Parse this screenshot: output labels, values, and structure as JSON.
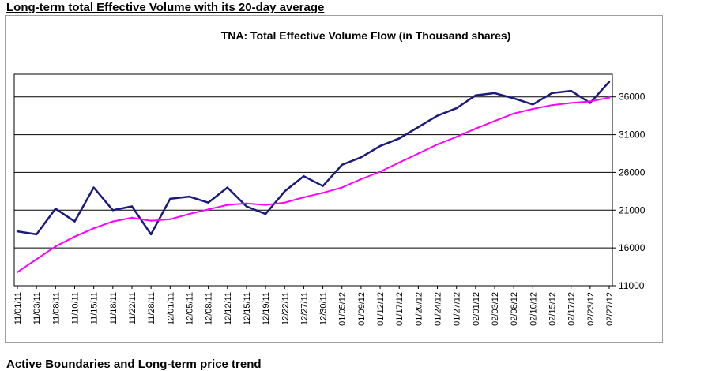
{
  "page": {
    "heading_top": "Long-term total Effective Volume with its 20-day average",
    "heading_bottom": "Active Boundaries and Long-term price trend"
  },
  "colors": {
    "series_volume": "#1a1a80",
    "series_average": "#ff00ff",
    "grid": "#000000"
  },
  "chart_data": {
    "type": "line",
    "title": "TNA: Total Effective Volume Flow (in Thousand shares)",
    "xlabel": "",
    "ylabel": "",
    "ylim": [
      11000,
      39000
    ],
    "yticks": [
      11000,
      16000,
      21000,
      26000,
      31000,
      36000
    ],
    "grid": "horizontal",
    "legend": "none",
    "x_tick_labels": [
      "11/01/11",
      "11/03/11",
      "11/08/11",
      "11/10/11",
      "11/15/11",
      "11/18/11",
      "11/22/11",
      "11/28/11",
      "12/01/11",
      "12/05/11",
      "12/08/11",
      "12/12/11",
      "12/15/11",
      "12/19/11",
      "12/22/11",
      "12/27/11",
      "12/30/11",
      "01/05/12",
      "01/09/12",
      "01/12/12",
      "01/17/12",
      "01/20/12",
      "01/24/12",
      "01/27/12",
      "02/01/12",
      "02/03/12",
      "02/08/12",
      "02/10/12",
      "02/15/12",
      "02/17/12",
      "02/23/12",
      "02/27/12"
    ],
    "series": [
      {
        "key": "volume",
        "x": [
          "11/01/11",
          "11/03/11",
          "11/08/11",
          "11/10/11",
          "11/15/11",
          "11/18/11",
          "11/22/11",
          "11/28/11",
          "12/01/11",
          "12/05/11",
          "12/08/11",
          "12/12/11",
          "12/15/11",
          "12/19/11",
          "12/22/11",
          "12/27/11",
          "12/30/11",
          "01/05/12",
          "01/09/12",
          "01/12/12",
          "01/17/12",
          "01/20/12",
          "01/24/12",
          "01/27/12",
          "02/01/12",
          "02/03/12",
          "02/08/12",
          "02/10/12",
          "02/15/12",
          "02/17/12",
          "02/23/12",
          "02/27/12"
        ],
        "values": [
          18200,
          17800,
          21200,
          19500,
          24000,
          21000,
          21500,
          17800,
          22500,
          22800,
          22000,
          24000,
          21500,
          20500,
          23500,
          25500,
          24200,
          27000,
          28000,
          29500,
          30500,
          32000,
          33500,
          34500,
          36200,
          36500,
          35800,
          35000,
          36500,
          36800,
          35200,
          38000
        ]
      },
      {
        "key": "average",
        "x": [
          "11/01/11",
          "11/03/11",
          "11/08/11",
          "11/10/11",
          "11/15/11",
          "11/18/11",
          "11/22/11",
          "11/28/11",
          "12/01/11",
          "12/05/11",
          "12/08/11",
          "12/12/11",
          "12/15/11",
          "12/19/11",
          "12/22/11",
          "12/27/11",
          "12/30/11",
          "01/05/12",
          "01/09/12",
          "01/12/12",
          "01/17/12",
          "01/20/12",
          "01/24/12",
          "01/27/12",
          "02/01/12",
          "02/03/12",
          "02/08/12",
          "02/10/12",
          "02/15/12",
          "02/17/12",
          "02/23/12",
          "02/27/12"
        ],
        "values": [
          12800,
          14500,
          16200,
          17500,
          18600,
          19500,
          20000,
          19600,
          19800,
          20500,
          21100,
          21700,
          21900,
          21700,
          22000,
          22700,
          23300,
          24000,
          25100,
          26100,
          27300,
          28500,
          29700,
          30700,
          31800,
          32800,
          33800,
          34400,
          34900,
          35200,
          35400,
          35900
        ]
      }
    ]
  }
}
